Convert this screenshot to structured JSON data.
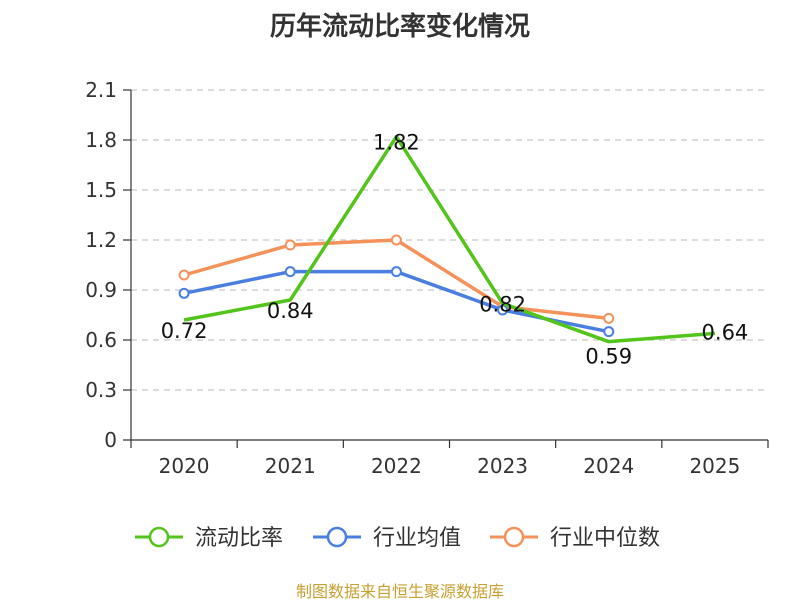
{
  "chart_data": {
    "type": "line",
    "title": "历年流动比率变化情况",
    "categories": [
      "2020",
      "2021",
      "2022",
      "2023",
      "2024",
      "2025"
    ],
    "ylim": [
      0,
      2.1
    ],
    "yticks": [
      "0",
      "0.3",
      "0.6",
      "0.9",
      "1.2",
      "1.5",
      "1.8",
      "2.1"
    ],
    "grid": true,
    "legend_position": "bottom",
    "series": [
      {
        "name": "流动比率",
        "color": "#52c41a",
        "values": [
          0.72,
          0.84,
          1.82,
          0.82,
          0.59,
          0.64
        ],
        "labels": [
          "0.72",
          "0.84",
          "1.82",
          "0.82",
          "0.59",
          "0.64"
        ],
        "markers": false
      },
      {
        "name": "行业均值",
        "color": "#4a7ee0",
        "values": [
          0.88,
          1.01,
          1.01,
          0.78,
          0.65,
          null
        ],
        "markers": true
      },
      {
        "name": "行业中位数",
        "color": "#f5925a",
        "values": [
          0.99,
          1.17,
          1.2,
          0.8,
          0.73,
          null
        ],
        "markers": true
      }
    ],
    "source": "制图数据来自恒生聚源数据库"
  }
}
